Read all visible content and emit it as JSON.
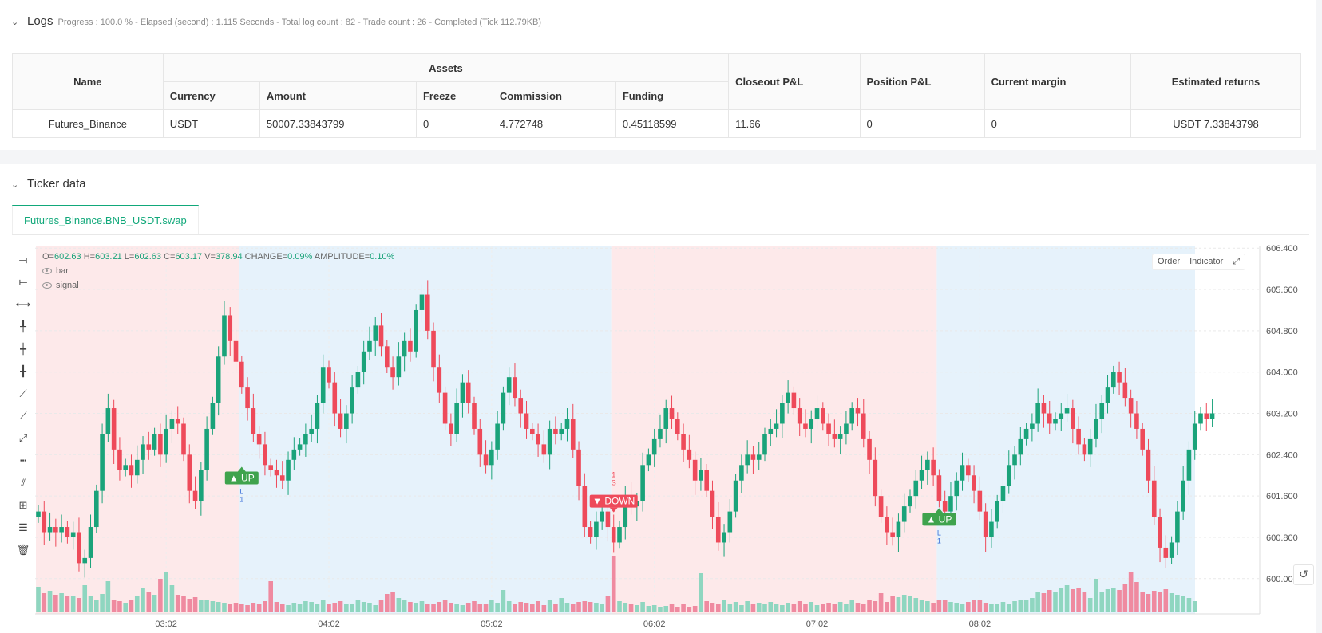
{
  "logs": {
    "title": "Logs",
    "status": "Progress : 100.0 % - Elapsed (second) : 1.115  Seconds - Total log count : 82 - Trade count : 26 - Completed (Tick 112.79KB)",
    "table": {
      "col_name": "Name",
      "col_assets": "Assets",
      "sub_headers": [
        "Currency",
        "Amount",
        "Freeze",
        "Commission",
        "Funding"
      ],
      "col_closeout": "Closeout P&L",
      "col_position": "Position P&L",
      "col_margin": "Current margin",
      "col_returns": "Estimated returns",
      "row": {
        "name": "Futures_Binance",
        "currency": "USDT",
        "amount": "50007.33843799",
        "freeze": "0",
        "commission": "4.772748",
        "funding": "0.45118599",
        "closeout": "11.66",
        "position": "0",
        "margin": "0",
        "returns": "USDT 7.33843798"
      }
    }
  },
  "ticker": {
    "title": "Ticker data",
    "tab": "Futures_Binance.BNB_USDT.swap",
    "ohlc": {
      "o_label": "O=",
      "o": "602.63",
      "h_label": "H=",
      "h": "603.21",
      "l_label": "L=",
      "l": "602.63",
      "c_label": "C=",
      "c": "603.17",
      "v_label": "V=",
      "v": "378.94",
      "chg_label": "CHANGE=",
      "chg": "0.09%",
      "amp_label": "AMPLITUDE=",
      "amp": "0.10%"
    },
    "legend": [
      "bar",
      "signal"
    ],
    "buttons": {
      "order": "Order",
      "indicator": "Indicator"
    },
    "tools": [
      "ray-icon",
      "segment-icon",
      "horizontal-line-icon",
      "vertical-ray-icon",
      "vertical-segment-icon",
      "vertical-line-icon",
      "trend-line-icon",
      "extended-line-icon",
      "arrow-line-icon",
      "price-range-icon",
      "parallel-channel-icon",
      "fib-icon",
      "measure-icon",
      "trash-icon"
    ]
  },
  "colors": {
    "up": "#1aa37a",
    "down": "#ee4a5a",
    "up_vol": "#8fd6c0",
    "down_vol": "#ef8aa0",
    "bg_short": "#fde9ea",
    "bg_long": "#e6f2fb",
    "accent": "#11a87a"
  },
  "chart_data": {
    "type": "candlestick",
    "y_axis_ticks": [
      "606.400",
      "605.600",
      "604.800",
      "604.000",
      "603.200",
      "602.400",
      "601.600",
      "600.800",
      "600.00"
    ],
    "x_axis_ticks": [
      "03:02",
      "04:02",
      "05:02",
      "06:02",
      "07:02",
      "08:02"
    ],
    "ylim": [
      599.75,
      606.45
    ],
    "regions": [
      {
        "kind": "short",
        "from_bar": 0,
        "to_bar": 35
      },
      {
        "kind": "long",
        "from_bar": 35,
        "to_bar": 99
      },
      {
        "kind": "short",
        "from_bar": 99,
        "to_bar": 155
      },
      {
        "kind": "long",
        "from_bar": 155,
        "to_bar": 201
      }
    ],
    "signals": [
      {
        "bar": 35,
        "label": "▲ UP",
        "dir": "up",
        "price": 601.95,
        "mark": "L",
        "count": "1"
      },
      {
        "bar": 99,
        "label": "▼ DOWN",
        "dir": "down",
        "price": 601.5,
        "mark": "S",
        "count": "1"
      },
      {
        "bar": 155,
        "label": "▲ UP",
        "dir": "up",
        "price": 601.15,
        "mark": "L",
        "count": "1"
      }
    ],
    "closes": [
      601.3,
      600.9,
      601.0,
      600.9,
      601.0,
      600.8,
      600.9,
      600.3,
      600.4,
      601.0,
      601.7,
      602.8,
      603.3,
      602.5,
      602.1,
      602.2,
      602.0,
      602.3,
      602.6,
      602.5,
      602.8,
      602.4,
      602.9,
      603.1,
      603.0,
      602.4,
      601.7,
      601.5,
      602.1,
      602.9,
      603.4,
      604.3,
      605.1,
      604.6,
      604.2,
      603.7,
      603.3,
      602.8,
      602.6,
      602.2,
      602.1,
      602.0,
      601.9,
      602.3,
      602.5,
      602.6,
      602.8,
      602.9,
      603.4,
      604.1,
      603.8,
      603.2,
      602.9,
      603.2,
      603.7,
      604.0,
      604.4,
      604.6,
      604.9,
      604.5,
      604.1,
      603.9,
      604.3,
      604.6,
      604.4,
      605.2,
      605.5,
      604.8,
      604.1,
      603.6,
      603.0,
      602.8,
      603.4,
      603.8,
      603.4,
      602.9,
      602.4,
      602.2,
      602.5,
      603.0,
      603.6,
      603.9,
      603.5,
      603.2,
      602.9,
      602.8,
      602.6,
      602.4,
      602.9,
      602.8,
      602.9,
      603.1,
      602.5,
      601.8,
      601.0,
      600.8,
      601.1,
      601.3,
      601.0,
      600.7,
      601.0,
      601.6,
      601.4,
      601.5,
      602.2,
      602.4,
      602.7,
      602.9,
      603.3,
      603.1,
      602.8,
      602.5,
      602.3,
      601.9,
      602.1,
      601.7,
      601.2,
      600.7,
      600.9,
      601.3,
      601.9,
      602.2,
      602.4,
      602.3,
      602.4,
      602.8,
      602.9,
      603.0,
      603.4,
      603.6,
      603.3,
      603.0,
      602.9,
      603.1,
      603.3,
      603.0,
      602.8,
      602.7,
      602.8,
      603.0,
      603.3,
      603.2,
      602.7,
      602.3,
      601.6,
      601.2,
      600.9,
      600.8,
      601.1,
      601.4,
      601.6,
      601.9,
      602.1,
      602.3,
      602.0,
      601.5,
      601.3,
      601.6,
      601.9,
      602.2,
      602.0,
      601.7,
      601.3,
      600.8,
      601.1,
      601.5,
      601.8,
      602.2,
      602.4,
      602.7,
      602.9,
      603.0,
      603.4,
      603.2,
      603.0,
      603.1,
      603.2,
      603.3,
      602.9,
      602.6,
      602.4,
      602.7,
      603.1,
      603.4,
      603.7,
      604.0,
      603.8,
      603.5,
      603.2,
      602.9,
      602.5,
      601.9,
      601.2,
      600.6,
      600.4,
      600.7,
      601.3,
      601.9,
      602.5,
      603.0,
      603.2,
      603.1,
      603.2
    ],
    "volumes": [
      3.2,
      2.4,
      2.7,
      2.2,
      2.4,
      2.1,
      2.0,
      1.8,
      3.4,
      2.1,
      1.6,
      2.3,
      3.9,
      1.5,
      1.4,
      1.2,
      1.6,
      2.0,
      3.0,
      2.5,
      2.2,
      4.2,
      5.1,
      3.4,
      2.2,
      2.0,
      1.7,
      1.9,
      1.5,
      1.6,
      1.4,
      1.3,
      1.2,
      1.0,
      1.2,
      1.1,
      0.9,
      1.2,
      1.0,
      1.4,
      3.9,
      1.3,
      1.1,
      0.9,
      1.2,
      1.0,
      1.4,
      1.3,
      1.1,
      1.5,
      1.0,
      1.2,
      1.4,
      1.0,
      1.1,
      1.5,
      1.3,
      1.2,
      0.9,
      1.6,
      2.3,
      2.5,
      1.8,
      1.5,
      1.3,
      1.2,
      1.4,
      1.0,
      1.1,
      1.3,
      1.5,
      1.2,
      1.1,
      0.9,
      1.2,
      1.4,
      1.0,
      1.1,
      1.6,
      1.2,
      2.8,
      1.4,
      1.0,
      1.3,
      1.2,
      1.1,
      1.4,
      0.9,
      1.6,
      1.0,
      1.8,
      1.2,
      1.1,
      1.3,
      1.4,
      1.3,
      1.2,
      1.0,
      2.1,
      7.0,
      1.4,
      1.2,
      1.0,
      0.9,
      1.3,
      0.8,
      0.9,
      0.6,
      0.8,
      1.0,
      0.7,
      1.0,
      0.6,
      0.8,
      4.9,
      1.4,
      1.2,
      1.0,
      1.6,
      1.1,
      1.3,
      0.9,
      1.4,
      1.0,
      1.2,
      1.1,
      1.3,
      1.0,
      0.9,
      1.2,
      1.1,
      1.4,
      1.0,
      1.3,
      0.9,
      1.1,
      1.2,
      1.0,
      1.3,
      1.1,
      1.6,
      1.2,
      1.0,
      1.5,
      1.4,
      2.4,
      1.3,
      2.1,
      1.9,
      2.2,
      2.0,
      1.8,
      1.6,
      1.4,
      1.2,
      1.6,
      1.5,
      1.3,
      1.2,
      1.1,
      1.3,
      1.6,
      1.5,
      1.2,
      1.1,
      1.0,
      1.3,
      1.1,
      1.4,
      1.6,
      1.5,
      1.8,
      2.5,
      2.4,
      2.8,
      2.6,
      3.0,
      3.4,
      2.9,
      3.1,
      2.6,
      1.8,
      4.2,
      2.5,
      2.9,
      3.1,
      2.8,
      3.6,
      5.0,
      3.8,
      2.6,
      2.3,
      2.7,
      2.5,
      2.9,
      2.4,
      2.2,
      2.0,
      1.8,
      1.4
    ]
  }
}
